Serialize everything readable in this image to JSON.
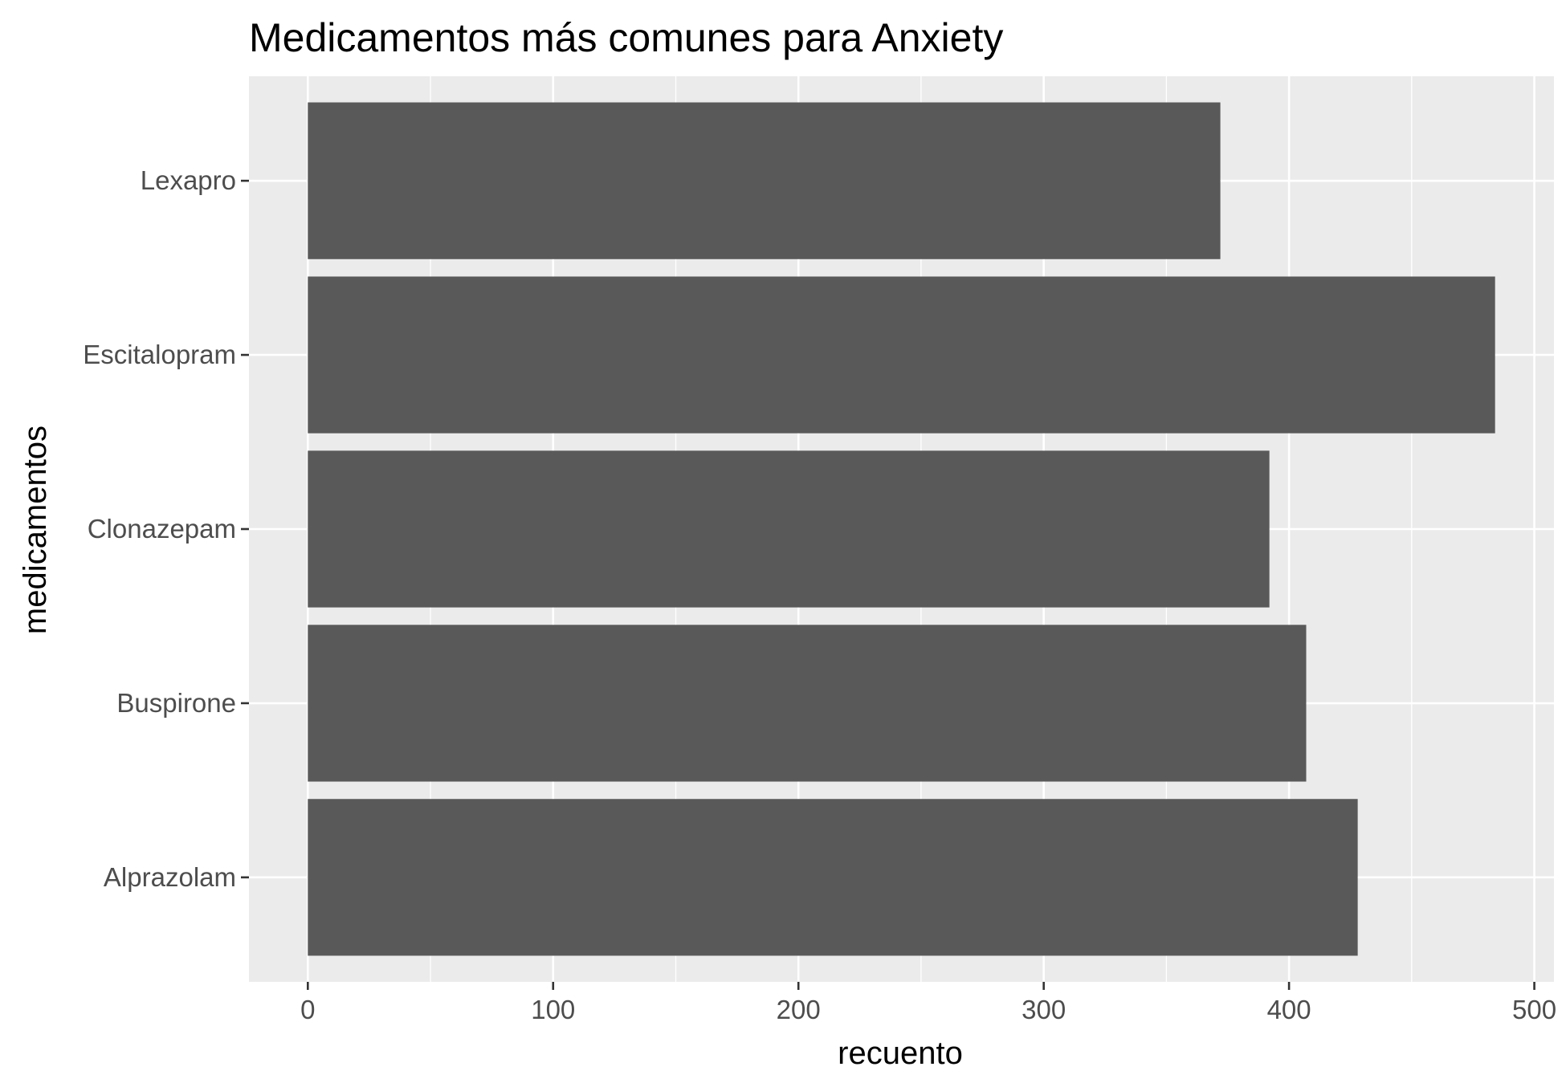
{
  "chart_data": {
    "type": "bar",
    "orientation": "horizontal",
    "title": "Medicamentos más comunes para Anxiety",
    "xlabel": "recuento",
    "ylabel": "medicamentos",
    "categories": [
      "Alprazolam",
      "Buspirone",
      "Clonazepam",
      "Escitalopram",
      "Lexapro"
    ],
    "values": [
      428,
      407,
      392,
      484,
      372
    ],
    "xlim": [
      -24,
      508
    ],
    "xticks": [
      0,
      100,
      200,
      300,
      400,
      500
    ],
    "xtick_labels": [
      "0",
      "100",
      "200",
      "300",
      "400",
      "500"
    ],
    "grid": true,
    "legend": "none",
    "colors": {
      "bar": "#595959",
      "panel": "#ebebeb",
      "grid": "#ffffff",
      "tick_text": "#4d4d4d"
    }
  }
}
